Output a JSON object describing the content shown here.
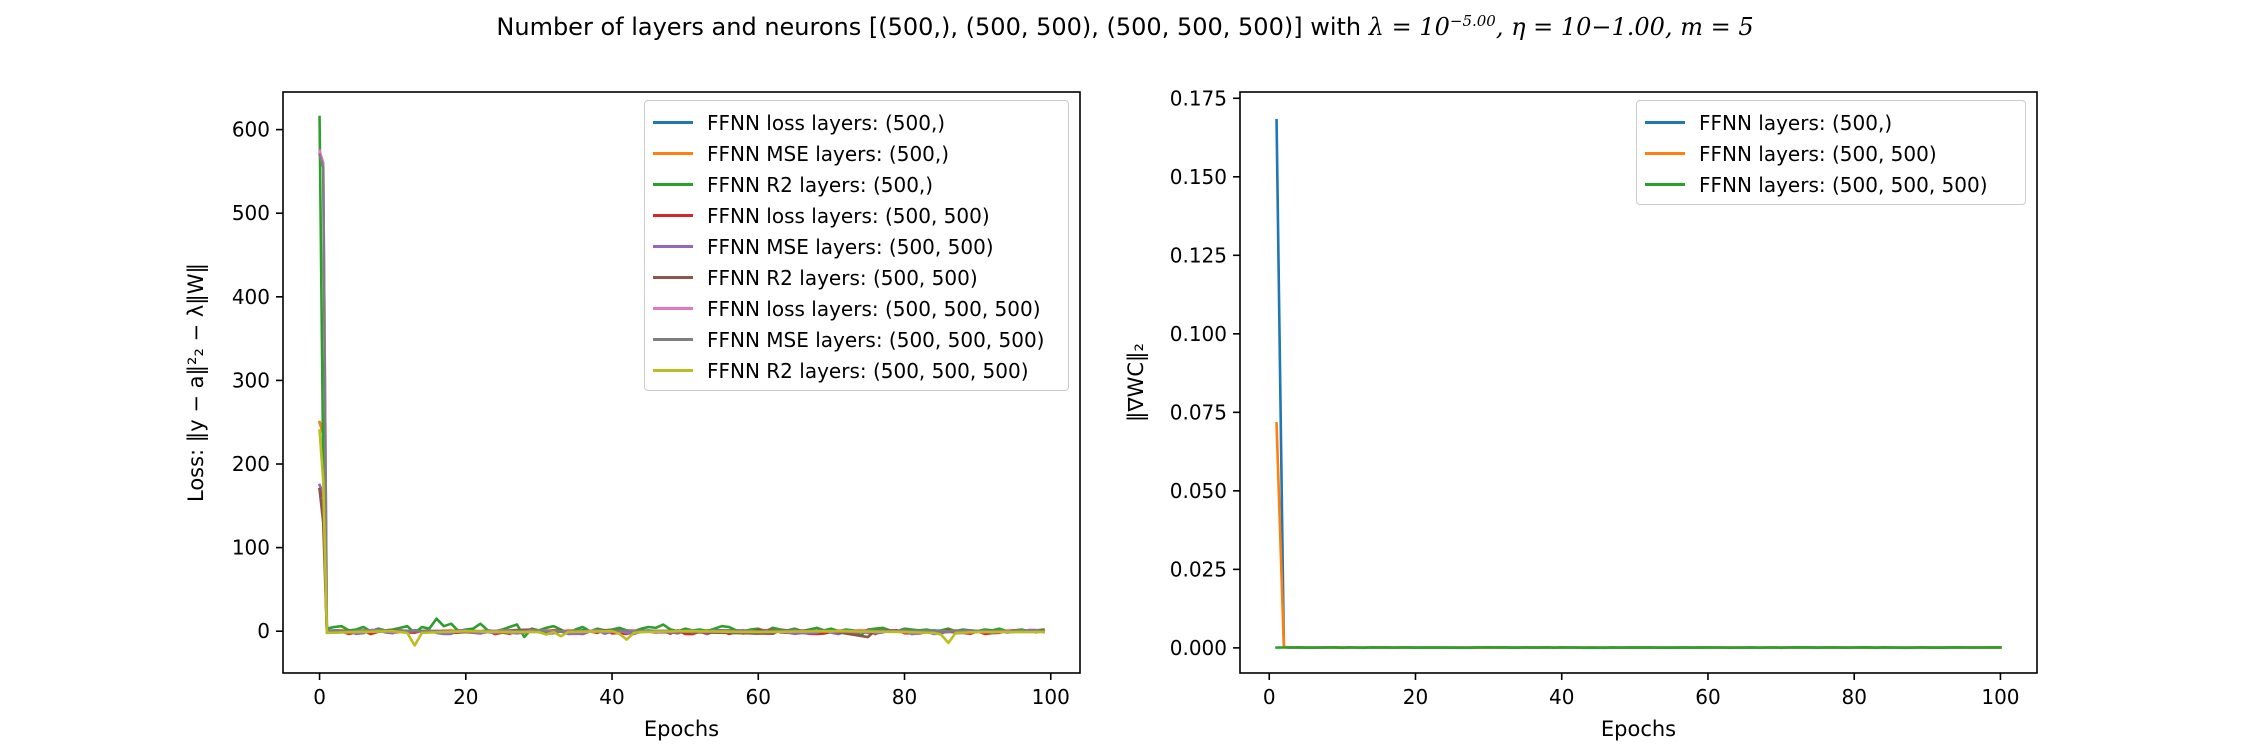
{
  "figure": {
    "title_parts": {
      "prefix": "Number of layers and neurons [(500,), (500, 500), (500, 500, 500)] with ",
      "lambda": "λ = 10",
      "lambda_exp": "−5.00",
      "eta": ", η = 10−1.00, m = 5"
    }
  },
  "chart_data": [
    {
      "type": "line",
      "xlabel": "Epochs",
      "ylabel": "Loss: ‖y − a‖²₂ − λ‖W‖",
      "xlim": [
        -5,
        104
      ],
      "ylim": [
        -50,
        645
      ],
      "xticks": [
        0,
        20,
        40,
        60,
        80,
        100
      ],
      "yticks": [
        0,
        100,
        200,
        300,
        400,
        500,
        600
      ],
      "legend_position": "upper right",
      "series": [
        {
          "name": "FFNN loss layers: (500,)",
          "color": "#1f77b4",
          "noise_amp": 0.6,
          "x": [
            0,
            0.5,
            1,
            99
          ],
          "y": [
            250,
            240,
            0.5,
            0.5
          ]
        },
        {
          "name": "FFNN MSE layers: (500,)",
          "color": "#ff7f0e",
          "noise_amp": 0.6,
          "x": [
            0,
            0.5,
            1,
            99
          ],
          "y": [
            250,
            235,
            0.5,
            0.5
          ]
        },
        {
          "name": "FFNN R2 layers: (500,)",
          "color": "#2ca02c",
          "noise_amp": 0,
          "x": [
            0,
            0.5,
            1,
            2,
            3,
            4,
            5,
            6,
            7,
            8,
            9,
            10,
            11,
            12,
            13,
            14,
            15,
            16,
            17,
            18,
            19,
            20,
            21,
            22,
            23,
            24,
            25,
            26,
            27,
            28,
            29,
            30,
            31,
            32,
            33,
            34,
            35,
            36,
            37,
            38,
            39,
            40,
            41,
            42,
            43,
            44,
            45,
            46,
            47,
            48,
            49,
            50,
            51,
            52,
            53,
            54,
            55,
            56,
            57,
            58,
            59,
            60,
            61,
            62,
            63,
            64,
            65,
            66,
            67,
            68,
            69,
            70,
            71,
            72,
            73,
            74,
            75,
            76,
            77,
            78,
            79,
            80,
            81,
            82,
            83,
            84,
            85,
            86,
            87,
            88,
            89,
            90,
            91,
            92,
            93,
            94,
            95,
            96,
            97,
            98,
            99
          ],
          "y": [
            615,
            200,
            3,
            5,
            6,
            1,
            2,
            5,
            0,
            3,
            1,
            2,
            4,
            6,
            -2,
            5,
            3,
            15,
            6,
            9,
            0,
            2,
            3,
            9,
            1,
            0,
            2,
            5,
            8,
            -7,
            3,
            1,
            4,
            6,
            2,
            -3,
            2,
            5,
            0,
            3,
            1,
            2,
            4,
            1,
            0,
            3,
            5,
            4,
            8,
            2,
            0,
            3,
            1,
            2,
            0,
            3,
            6,
            5,
            1,
            0,
            2,
            3,
            0,
            4,
            2,
            1,
            3,
            0,
            2,
            4,
            1,
            3,
            0,
            2,
            1,
            -5,
            2,
            3,
            4,
            1,
            0,
            3,
            2,
            1,
            2,
            0,
            1,
            3,
            0,
            2,
            1,
            0,
            2,
            1,
            3,
            0,
            1,
            2,
            0,
            1,
            2
          ]
        },
        {
          "name": "FFNN loss layers: (500, 500)",
          "color": "#d62728",
          "noise_amp": 2.5,
          "x": [
            0,
            0.5,
            1,
            99
          ],
          "y": [
            170,
            160,
            -1,
            -1
          ]
        },
        {
          "name": "FFNN MSE layers: (500, 500)",
          "color": "#9467bd",
          "noise_amp": 2.5,
          "x": [
            0,
            0.5,
            1,
            99
          ],
          "y": [
            175,
            165,
            -1,
            -1
          ]
        },
        {
          "name": "FFNN R2 layers: (500, 500)",
          "color": "#8c564b",
          "noise_amp": 0,
          "x": [
            0,
            0.5,
            1,
            10,
            20,
            29,
            30,
            40,
            50,
            62,
            63,
            70,
            75,
            76,
            85,
            99
          ],
          "y": [
            170,
            130,
            -2,
            1,
            -1,
            2,
            -1,
            1,
            -1,
            -3,
            1,
            0,
            -7,
            1,
            -1,
            0
          ]
        },
        {
          "name": "FFNN loss layers: (500, 500, 500)",
          "color": "#e377c2",
          "noise_amp": 0.5,
          "x": [
            0,
            0.5,
            1,
            99
          ],
          "y": [
            575,
            560,
            0,
            0
          ]
        },
        {
          "name": "FFNN MSE layers: (500, 500, 500)",
          "color": "#7f7f7f",
          "noise_amp": 0.5,
          "x": [
            0,
            0.5,
            1,
            99
          ],
          "y": [
            570,
            555,
            0,
            0
          ]
        },
        {
          "name": "FFNN R2 layers: (500, 500, 500)",
          "color": "#bcbd22",
          "noise_amp": 0,
          "x": [
            0,
            0.5,
            1,
            5,
            10,
            12,
            13,
            14,
            20,
            25,
            30,
            31,
            32,
            33,
            34,
            40,
            41,
            42,
            43,
            44,
            50,
            60,
            70,
            80,
            84,
            85,
            86,
            87,
            90,
            99
          ],
          "y": [
            240,
            180,
            -2,
            -1,
            0,
            -2,
            -17,
            -2,
            0,
            -1,
            -1,
            -4,
            -1,
            -6,
            -1,
            0,
            -3,
            -10,
            -2,
            -1,
            0,
            -1,
            0,
            -1,
            -2,
            -4,
            -14,
            -2,
            -1,
            -1
          ]
        }
      ]
    },
    {
      "type": "line",
      "xlabel": "Epochs",
      "ylabel": "‖∇WC‖₂",
      "xlim": [
        -4,
        105
      ],
      "ylim": [
        -0.008,
        0.177
      ],
      "xticks": [
        0,
        20,
        40,
        60,
        80,
        100
      ],
      "yticks": [
        0.0,
        0.025,
        0.05,
        0.075,
        0.1,
        0.125,
        0.15,
        0.175
      ],
      "ytick_format": 3,
      "legend_position": "upper right",
      "series": [
        {
          "name": "FFNN layers: (500,)",
          "color": "#1f77b4",
          "noise_amp": 0,
          "x": [
            1,
            2,
            3,
            100
          ],
          "y": [
            0.168,
            0.0002,
            0.0001,
            0.0001
          ]
        },
        {
          "name": "FFNN layers: (500, 500)",
          "color": "#ff7f0e",
          "noise_amp": 0,
          "x": [
            1,
            2,
            3,
            100
          ],
          "y": [
            0.0715,
            0.0003,
            0.0001,
            0.0001
          ]
        },
        {
          "name": "FFNN layers: (500, 500, 500)",
          "color": "#2ca02c",
          "noise_amp": 8e-05,
          "x": [
            1,
            2,
            100
          ],
          "y": [
            0.0001,
            0.0001,
            0.0001
          ]
        }
      ]
    }
  ]
}
